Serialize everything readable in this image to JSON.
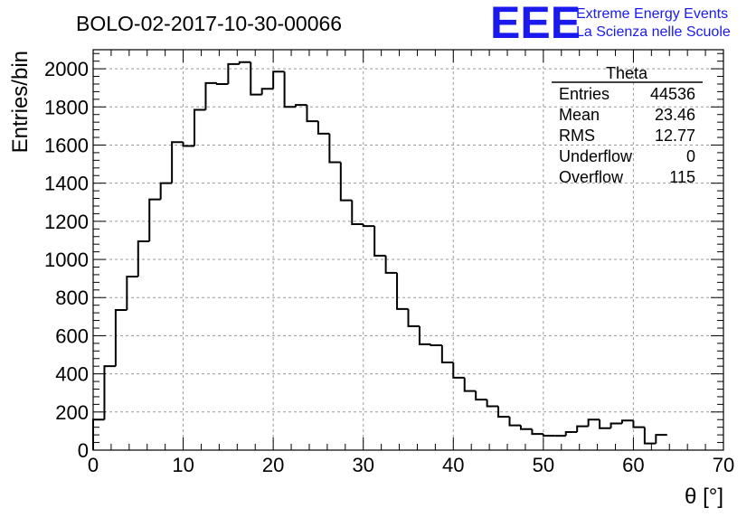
{
  "logo": {
    "mark": "EEE",
    "line1": "Extreme Energy Events",
    "line2": "La Scienza nelle Scuole",
    "color": "#1a1aee"
  },
  "chart_data": {
    "type": "bar",
    "title": "BOLO-02-2017-10-30-00066",
    "xlabel": "θ [°]",
    "ylabel": "Entries/bin",
    "xlim": [
      0,
      70
    ],
    "ylim": [
      0,
      2100
    ],
    "x_ticks": [
      0,
      10,
      20,
      30,
      40,
      50,
      60,
      70
    ],
    "y_ticks": [
      0,
      200,
      400,
      600,
      800,
      1000,
      1200,
      1400,
      1600,
      1800,
      2000
    ],
    "grid": true,
    "bin_edges_start": 0,
    "bin_width": 1.25,
    "values": [
      160,
      440,
      735,
      910,
      1095,
      1315,
      1400,
      1615,
      1595,
      1785,
      1925,
      1920,
      2025,
      2035,
      1865,
      1895,
      1985,
      1800,
      1810,
      1725,
      1660,
      1510,
      1310,
      1185,
      1175,
      1020,
      930,
      740,
      650,
      555,
      550,
      460,
      380,
      310,
      265,
      230,
      175,
      130,
      110,
      85,
      75,
      75,
      95,
      125,
      160,
      115,
      140,
      155,
      120,
      35,
      80
    ],
    "stats": {
      "name": "Theta",
      "rows": [
        {
          "label": "Entries",
          "value": "44536"
        },
        {
          "label": "Mean",
          "value": "23.46"
        },
        {
          "label": "RMS",
          "value": "12.77"
        },
        {
          "label": "Underflow",
          "value": "0"
        },
        {
          "label": "Overflow",
          "value": "115"
        }
      ]
    }
  }
}
